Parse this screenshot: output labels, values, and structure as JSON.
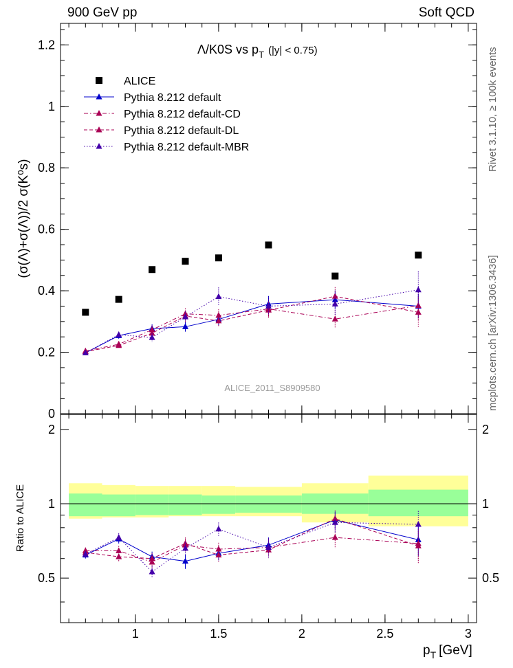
{
  "header": {
    "left": "900 GeV pp",
    "right": "Soft QCD"
  },
  "side_labels": {
    "top": "Rivet 3.1.10, ≥ 100k events",
    "bottom": "mcplots.cern.ch [arXiv:1306.3436]"
  },
  "chart_data": [
    {
      "type": "scatter",
      "panel": "main",
      "title_main": "Λ/K0S vs p",
      "title_sub": "T",
      "title_cut": "(|y| < 0.75)",
      "ylabel": "(σ(Λ)+σ(Λ))/2 σ(K⁰s)",
      "ylim": [
        0,
        1.27
      ],
      "yticks": [
        0.2,
        0.4,
        0.6,
        0.8,
        1,
        1.2
      ],
      "yticklabels": [
        "0.2",
        "0.4",
        "0.6",
        "0.8",
        "1",
        "1.2"
      ],
      "y_zero_label": "0",
      "xlim": [
        0.55,
        3.05
      ],
      "watermark": "ALICE_2011_S8909580",
      "legend_position": "top-left",
      "series": [
        {
          "name": "ALICE",
          "marker": "square",
          "color": "#000000",
          "line": "none",
          "x": [
            0.7,
            0.9,
            1.1,
            1.3,
            1.5,
            1.8,
            2.2,
            2.7
          ],
          "y": [
            0.33,
            0.372,
            0.469,
            0.496,
            0.507,
            0.549,
            0.448,
            0.516
          ]
        },
        {
          "name": "Pythia 8.212 default",
          "marker": "triangle",
          "color": "#0000cc",
          "line": "solid",
          "x": [
            0.7,
            0.9,
            1.1,
            1.3,
            1.5,
            1.8,
            2.2,
            2.7
          ],
          "y": [
            0.198,
            0.254,
            0.277,
            0.283,
            0.307,
            0.357,
            0.371,
            0.35
          ],
          "err": [
            0.008,
            0.01,
            0.014,
            0.016,
            0.02,
            0.026,
            0.03,
            0.04
          ]
        },
        {
          "name": "Pythia 8.212 default-CD",
          "marker": "triangle",
          "color": "#aa0055",
          "line": "dashdot",
          "x": [
            0.7,
            0.9,
            1.1,
            1.3,
            1.5,
            1.8,
            2.2,
            2.7
          ],
          "y": [
            0.204,
            0.226,
            0.273,
            0.325,
            0.32,
            0.341,
            0.308,
            0.352
          ],
          "err": [
            0.008,
            0.01,
            0.014,
            0.018,
            0.02,
            0.026,
            0.03,
            0.05
          ]
        },
        {
          "name": "Pythia 8.212 default-DL",
          "marker": "triangle",
          "color": "#aa0055",
          "line": "dashed",
          "x": [
            0.7,
            0.9,
            1.1,
            1.3,
            1.5,
            1.8,
            2.2,
            2.7
          ],
          "y": [
            0.202,
            0.222,
            0.262,
            0.318,
            0.302,
            0.337,
            0.382,
            0.33
          ],
          "err": [
            0.008,
            0.01,
            0.014,
            0.018,
            0.02,
            0.026,
            0.03,
            0.05
          ]
        },
        {
          "name": "Pythia 8.212 default-MBR",
          "marker": "triangle",
          "color": "#4400aa",
          "line": "dotted",
          "x": [
            0.7,
            0.9,
            1.1,
            1.3,
            1.5,
            1.8,
            2.2,
            2.7
          ],
          "y": [
            0.198,
            0.257,
            0.248,
            0.315,
            0.381,
            0.35,
            0.357,
            0.403
          ],
          "err": [
            0.008,
            0.01,
            0.014,
            0.018,
            0.03,
            0.03,
            0.035,
            0.06
          ]
        }
      ]
    },
    {
      "type": "scatter",
      "panel": "ratio",
      "ylabel": "Ratio to ALICE",
      "ylim": [
        0.33,
        2.3
      ],
      "yticks": [
        0.5,
        1,
        2
      ],
      "yticklabels": [
        "0.5",
        "1",
        "2"
      ],
      "xlim": [
        0.55,
        3.05
      ],
      "xticks": [
        1,
        1.5,
        2,
        2.5,
        3
      ],
      "xticklabels": [
        "1",
        "1.5",
        "2",
        "2.5",
        "3"
      ],
      "xlabel_main": "p",
      "xlabel_sub": "T",
      "xlabel_unit": "[GeV]",
      "bands": {
        "edges": [
          0.6,
          0.8,
          1.0,
          1.2,
          1.4,
          1.6,
          2.0,
          2.4,
          3.0
        ],
        "stat_lo": [
          0.89,
          0.89,
          0.9,
          0.9,
          0.91,
          0.92,
          0.91,
          0.89
        ],
        "stat_hi": [
          1.1,
          1.09,
          1.09,
          1.09,
          1.08,
          1.08,
          1.1,
          1.14
        ],
        "tot_lo": [
          0.87,
          0.88,
          0.88,
          0.89,
          0.89,
          0.89,
          0.84,
          0.81
        ],
        "tot_hi": [
          1.21,
          1.19,
          1.18,
          1.18,
          1.18,
          1.17,
          1.21,
          1.3
        ]
      },
      "series": [
        {
          "name": "Pythia 8.212 default",
          "color": "#0000cc",
          "line": "solid",
          "x": [
            0.7,
            0.9,
            1.1,
            1.3,
            1.5,
            1.8,
            2.2,
            2.7
          ],
          "y": [
            0.62,
            0.72,
            0.61,
            0.585,
            0.63,
            0.68,
            0.86,
            0.715
          ],
          "err": [
            0.02,
            0.03,
            0.03,
            0.04,
            0.04,
            0.05,
            0.07,
            0.1
          ]
        },
        {
          "name": "Pythia 8.212 default-CD",
          "color": "#aa0055",
          "line": "dashdot",
          "x": [
            0.7,
            0.9,
            1.1,
            1.3,
            1.5,
            1.8,
            2.2,
            2.7
          ],
          "y": [
            0.645,
            0.645,
            0.58,
            0.68,
            0.655,
            0.665,
            0.73,
            0.69
          ],
          "err": [
            0.02,
            0.03,
            0.03,
            0.04,
            0.04,
            0.05,
            0.07,
            0.1
          ]
        },
        {
          "name": "Pythia 8.212 default-DL",
          "color": "#aa0055",
          "line": "dashed",
          "x": [
            0.7,
            0.9,
            1.1,
            1.3,
            1.5,
            1.8,
            2.2,
            2.7
          ],
          "y": [
            0.635,
            0.61,
            0.6,
            0.69,
            0.62,
            0.65,
            0.87,
            0.675
          ],
          "err": [
            0.02,
            0.03,
            0.03,
            0.04,
            0.04,
            0.05,
            0.07,
            0.1
          ]
        },
        {
          "name": "Pythia 8.212 default-MBR",
          "color": "#4400aa",
          "line": "dotted",
          "x": [
            0.7,
            0.9,
            1.1,
            1.3,
            1.5,
            1.8,
            2.2,
            2.7
          ],
          "y": [
            0.625,
            0.73,
            0.53,
            0.66,
            0.79,
            0.665,
            0.84,
            0.825
          ],
          "err": [
            0.02,
            0.03,
            0.03,
            0.04,
            0.05,
            0.06,
            0.08,
            0.11
          ]
        }
      ]
    }
  ]
}
